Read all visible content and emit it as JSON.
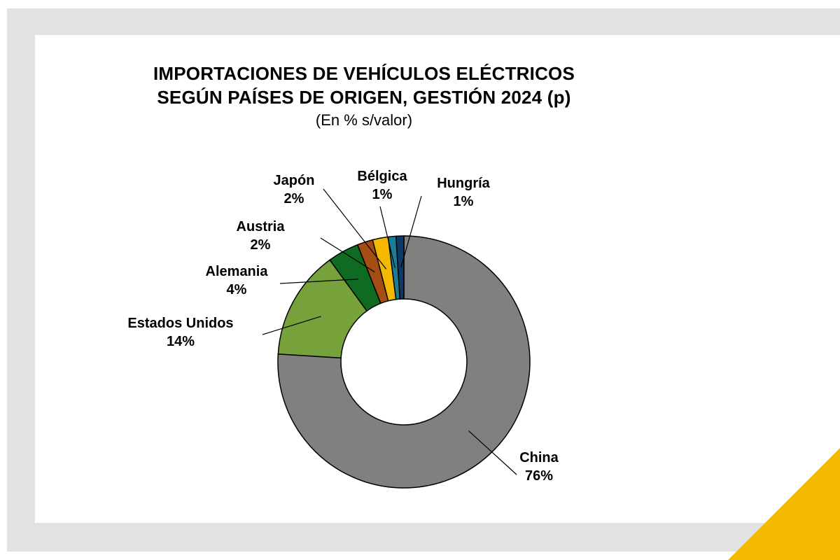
{
  "chart_data": {
    "type": "pie",
    "variant": "donut",
    "title": "IMPORTACIONES DE VEHÍCULOS ELÉCTRICOS",
    "title_line2": "SEGÚN PAÍSES DE ORIGEN, GESTIÓN 2024 (p)",
    "subtitle": "(En % s/valor)",
    "categories": [
      "China",
      "Estados Unidos",
      "Alemania",
      "Austria",
      "Japón",
      "Bélgica",
      "Hungría"
    ],
    "values": [
      76,
      14,
      4,
      2,
      2,
      1,
      1
    ],
    "value_labels": [
      "76%",
      "14%",
      "4%",
      "2%",
      "2%",
      "1%",
      "1%"
    ],
    "colors": [
      "#808080",
      "#77a23b",
      "#0e6b21",
      "#a64d14",
      "#f5b800",
      "#1b7e95",
      "#0d3a6b"
    ],
    "legend": "none"
  },
  "decor": {
    "frame_color": "#e2e2e2",
    "accent_color": "#f5b800"
  }
}
